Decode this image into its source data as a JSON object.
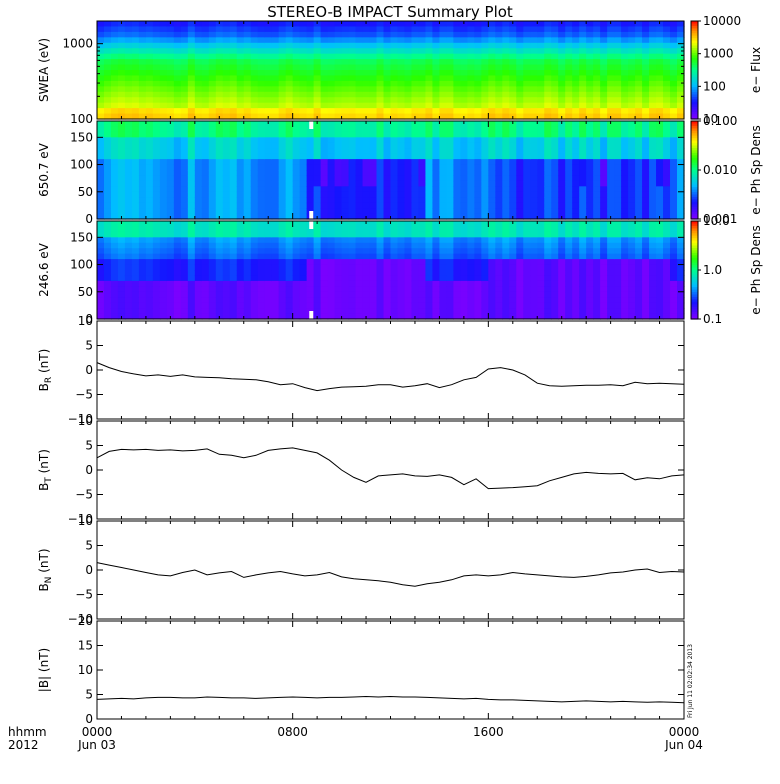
{
  "title": "STEREO-B IMPACT Summary Plot",
  "stamp": "Fri Jun 11 02:02:34 2013",
  "chart_data": [
    {
      "type": "heatmap",
      "id": "swea",
      "ylabel": "SWEA (eV)",
      "yscale": "log",
      "ylim": [
        100,
        2000
      ],
      "yticks": [
        {
          "v": 100,
          "t": "100"
        },
        {
          "v": 1000,
          "t": "1000"
        }
      ],
      "colorbar_label": "e− Flux",
      "colorbar_scale": "log",
      "colorbar_range": [
        10,
        10000
      ],
      "colorbar_ticks": [
        {
          "v": 10,
          "t": "10"
        },
        {
          "v": 100,
          "t": "100"
        },
        {
          "v": 1000,
          "t": "1000"
        },
        {
          "v": 10000,
          "t": "10000"
        }
      ]
    },
    {
      "type": "heatmap",
      "id": "pad650",
      "ylabel": "650.7 eV",
      "ylim": [
        0,
        180
      ],
      "yticks": [
        {
          "v": 0,
          "t": "0"
        },
        {
          "v": 50,
          "t": "50"
        },
        {
          "v": 100,
          "t": "100"
        },
        {
          "v": 150,
          "t": "150"
        }
      ],
      "colorbar_label": "e− Ph Sp Dens",
      "colorbar_scale": "log",
      "colorbar_range": [
        0.001,
        0.1
      ],
      "colorbar_ticks": [
        {
          "v": 0.001,
          "t": "0.001"
        },
        {
          "v": 0.01,
          "t": "0.010"
        },
        {
          "v": 0.1,
          "t": "0.100"
        }
      ]
    },
    {
      "type": "heatmap",
      "id": "pad246",
      "ylabel": "246.6 eV",
      "ylim": [
        0,
        180
      ],
      "yticks": [
        {
          "v": 0,
          "t": "0"
        },
        {
          "v": 50,
          "t": "50"
        },
        {
          "v": 100,
          "t": "100"
        },
        {
          "v": 150,
          "t": "150"
        }
      ],
      "colorbar_label": "e− Ph Sp Dens",
      "colorbar_scale": "log",
      "colorbar_range": [
        0.1,
        10
      ],
      "colorbar_ticks": [
        {
          "v": 0.1,
          "t": "0.1"
        },
        {
          "v": 1,
          "t": "1.0"
        },
        {
          "v": 10,
          "t": "10.0"
        }
      ]
    },
    {
      "type": "line",
      "id": "br",
      "ylabel": "B",
      "ylabel_sub": "R",
      "ylabel_unit": " (nT)",
      "ylim": [
        -10,
        10
      ],
      "yticks": [
        {
          "v": -10,
          "t": "−10"
        },
        {
          "v": -5,
          "t": "−5"
        },
        {
          "v": 0,
          "t": "0"
        },
        {
          "v": 5,
          "t": "5"
        },
        {
          "v": 10,
          "t": "10"
        }
      ],
      "x": [
        0,
        0.5,
        1,
        1.5,
        2,
        2.5,
        3,
        3.5,
        4,
        4.5,
        5,
        5.5,
        6,
        6.5,
        7,
        7.5,
        8,
        8.5,
        9,
        9.5,
        10,
        10.5,
        11,
        11.5,
        12,
        12.5,
        13,
        13.5,
        14,
        14.5,
        15,
        15.5,
        16,
        16.5,
        17,
        17.5,
        18,
        18.5,
        19,
        19.5,
        20,
        20.5,
        21,
        21.5,
        22,
        22.5,
        23,
        23.5,
        24
      ],
      "values": [
        1.5,
        0.5,
        -0.3,
        -0.8,
        -1.2,
        -1.0,
        -1.3,
        -1.0,
        -1.4,
        -1.5,
        -1.6,
        -1.8,
        -1.9,
        -2.0,
        -2.4,
        -3.0,
        -2.8,
        -3.6,
        -4.2,
        -3.8,
        -3.5,
        -3.4,
        -3.3,
        -3.0,
        -3.0,
        -3.5,
        -3.2,
        -2.8,
        -3.6,
        -3.0,
        -2.0,
        -1.5,
        0.2,
        0.5,
        0.0,
        -1.0,
        -2.7,
        -3.2,
        -3.3,
        -3.2,
        -3.1,
        -3.1,
        -3.0,
        -3.2,
        -2.5,
        -2.8,
        -2.7,
        -2.8,
        -2.9
      ]
    },
    {
      "type": "line",
      "id": "bt",
      "ylabel": "B",
      "ylabel_sub": "T",
      "ylabel_unit": " (nT)",
      "ylim": [
        -10,
        10
      ],
      "yticks": [
        {
          "v": -10,
          "t": "−10"
        },
        {
          "v": -5,
          "t": "−5"
        },
        {
          "v": 0,
          "t": "0"
        },
        {
          "v": 5,
          "t": "5"
        },
        {
          "v": 10,
          "t": "10"
        }
      ],
      "x": [
        0,
        0.5,
        1,
        1.5,
        2,
        2.5,
        3,
        3.5,
        4,
        4.5,
        5,
        5.5,
        6,
        6.5,
        7,
        7.5,
        8,
        8.5,
        9,
        9.5,
        10,
        10.5,
        11,
        11.5,
        12,
        12.5,
        13,
        13.5,
        14,
        14.5,
        15,
        15.5,
        16,
        16.5,
        17,
        17.5,
        18,
        18.5,
        19,
        19.5,
        20,
        20.5,
        21,
        21.5,
        22,
        22.5,
        23,
        23.5,
        24
      ],
      "values": [
        2.5,
        3.8,
        4.2,
        4.1,
        4.2,
        4.0,
        4.1,
        3.9,
        4.0,
        4.3,
        3.2,
        3.0,
        2.5,
        3.0,
        4.0,
        4.3,
        4.5,
        4.0,
        3.5,
        2.0,
        0.0,
        -1.5,
        -2.5,
        -1.2,
        -1.0,
        -0.8,
        -1.2,
        -1.3,
        -1.0,
        -1.5,
        -3.0,
        -1.8,
        -3.8,
        -3.7,
        -3.6,
        -3.4,
        -3.2,
        -2.2,
        -1.5,
        -0.8,
        -0.5,
        -0.7,
        -0.8,
        -0.7,
        -2.0,
        -1.6,
        -1.8,
        -1.2,
        -1.0
      ]
    },
    {
      "type": "line",
      "id": "bn",
      "ylabel": "B",
      "ylabel_sub": "N",
      "ylabel_unit": " (nT)",
      "ylim": [
        -10,
        10
      ],
      "yticks": [
        {
          "v": -10,
          "t": "−10"
        },
        {
          "v": -5,
          "t": "−5"
        },
        {
          "v": 0,
          "t": "0"
        },
        {
          "v": 5,
          "t": "5"
        },
        {
          "v": 10,
          "t": "10"
        }
      ],
      "x": [
        0,
        0.5,
        1,
        1.5,
        2,
        2.5,
        3,
        3.5,
        4,
        4.5,
        5,
        5.5,
        6,
        6.5,
        7,
        7.5,
        8,
        8.5,
        9,
        9.5,
        10,
        10.5,
        11,
        11.5,
        12,
        12.5,
        13,
        13.5,
        14,
        14.5,
        15,
        15.5,
        16,
        16.5,
        17,
        17.5,
        18,
        18.5,
        19,
        19.5,
        20,
        20.5,
        21,
        21.5,
        22,
        22.5,
        23,
        23.5,
        24
      ],
      "values": [
        1.5,
        1.0,
        0.5,
        0.0,
        -0.5,
        -1.0,
        -1.2,
        -0.5,
        0.0,
        -1.0,
        -0.6,
        -0.3,
        -1.5,
        -1.0,
        -0.6,
        -0.3,
        -0.8,
        -1.2,
        -1.0,
        -0.5,
        -1.4,
        -1.8,
        -2.0,
        -2.2,
        -2.5,
        -3.0,
        -3.3,
        -2.8,
        -2.5,
        -2.0,
        -1.2,
        -1.0,
        -1.2,
        -1.0,
        -0.5,
        -0.8,
        -1.0,
        -1.2,
        -1.4,
        -1.5,
        -1.3,
        -1.0,
        -0.6,
        -0.4,
        0.0,
        0.2,
        -0.5,
        -0.3,
        -0.4
      ]
    },
    {
      "type": "line",
      "id": "bmag",
      "ylabel": "|B| (nT)",
      "ylim": [
        0,
        20
      ],
      "yticks": [
        {
          "v": 0,
          "t": "0"
        },
        {
          "v": 5,
          "t": "5"
        },
        {
          "v": 10,
          "t": "10"
        },
        {
          "v": 15,
          "t": "15"
        },
        {
          "v": 20,
          "t": "20"
        }
      ],
      "x": [
        0,
        0.5,
        1,
        1.5,
        2,
        2.5,
        3,
        3.5,
        4,
        4.5,
        5,
        5.5,
        6,
        6.5,
        7,
        7.5,
        8,
        8.5,
        9,
        9.5,
        10,
        10.5,
        11,
        11.5,
        12,
        12.5,
        13,
        13.5,
        14,
        14.5,
        15,
        15.5,
        16,
        16.5,
        17,
        17.5,
        18,
        18.5,
        19,
        19.5,
        20,
        20.5,
        21,
        21.5,
        22,
        22.5,
        23,
        23.5,
        24
      ],
      "values": [
        4.0,
        4.1,
        4.2,
        4.1,
        4.3,
        4.4,
        4.4,
        4.3,
        4.3,
        4.5,
        4.4,
        4.3,
        4.3,
        4.2,
        4.3,
        4.4,
        4.5,
        4.4,
        4.3,
        4.4,
        4.4,
        4.5,
        4.6,
        4.5,
        4.6,
        4.5,
        4.5,
        4.4,
        4.3,
        4.2,
        4.1,
        4.2,
        4.0,
        3.9,
        3.9,
        3.8,
        3.7,
        3.6,
        3.5,
        3.6,
        3.7,
        3.6,
        3.5,
        3.6,
        3.5,
        3.4,
        3.5,
        3.4,
        3.3
      ]
    }
  ],
  "time_axis": {
    "hhmm_label": "hhmm",
    "year_label": "2012",
    "xlim_hours": [
      0,
      24
    ],
    "ticks": [
      {
        "h": 0,
        "t": "0000",
        "d": "Jun 03"
      },
      {
        "h": 8,
        "t": "0800",
        "d": ""
      },
      {
        "h": 16,
        "t": "1600",
        "d": ""
      },
      {
        "h": 24,
        "t": "0000",
        "d": "Jun 04"
      }
    ]
  }
}
